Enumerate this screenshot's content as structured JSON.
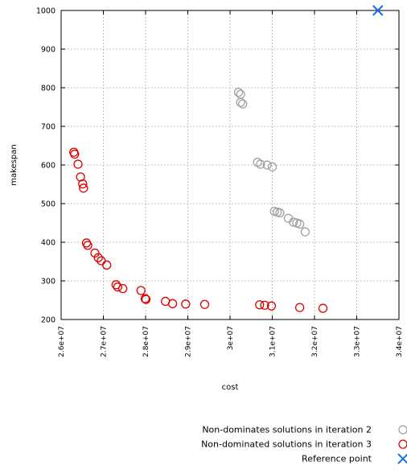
{
  "chart_data": {
    "type": "scatter",
    "title": "",
    "xlabel": "cost",
    "ylabel": "makespan",
    "xlim": [
      26000000,
      34000000
    ],
    "ylim": [
      200,
      1000
    ],
    "grid": true,
    "legend_position": "bottom-right",
    "xticks": [
      {
        "value": 26000000,
        "label": "2.6e+07"
      },
      {
        "value": 27000000,
        "label": "2.7e+07"
      },
      {
        "value": 28000000,
        "label": "2.8e+07"
      },
      {
        "value": 29000000,
        "label": "2.9e+07"
      },
      {
        "value": 30000000,
        "label": "3e+07"
      },
      {
        "value": 31000000,
        "label": "3.1e+07"
      },
      {
        "value": 32000000,
        "label": "3.2e+07"
      },
      {
        "value": 33000000,
        "label": "3.3e+07"
      },
      {
        "value": 34000000,
        "label": "3.4e+07"
      }
    ],
    "yticks": [
      {
        "value": 200,
        "label": "200"
      },
      {
        "value": 300,
        "label": "300"
      },
      {
        "value": 400,
        "label": "400"
      },
      {
        "value": 500,
        "label": "500"
      },
      {
        "value": 600,
        "label": "600"
      },
      {
        "value": 700,
        "label": "700"
      },
      {
        "value": 800,
        "label": "800"
      },
      {
        "value": 900,
        "label": "900"
      },
      {
        "value": 1000,
        "label": "1000"
      }
    ],
    "series": [
      {
        "name": "Non-dominates solutions in iteration 2",
        "color": "#a0a0a0",
        "marker": "circle",
        "points": [
          [
            30200000,
            788
          ],
          [
            30250000,
            783
          ],
          [
            30250000,
            762
          ],
          [
            30300000,
            758
          ],
          [
            30650000,
            607
          ],
          [
            30720000,
            602
          ],
          [
            30880000,
            600
          ],
          [
            31000000,
            595
          ],
          [
            31050000,
            480
          ],
          [
            31120000,
            478
          ],
          [
            31180000,
            476
          ],
          [
            31380000,
            462
          ],
          [
            31500000,
            452
          ],
          [
            31580000,
            450
          ],
          [
            31650000,
            447
          ],
          [
            31780000,
            427
          ]
        ]
      },
      {
        "name": "Non-dominated solutions in iteration 3",
        "color": "#dd0000",
        "marker": "circle",
        "points": [
          [
            26300000,
            633
          ],
          [
            26320000,
            628
          ],
          [
            26400000,
            602
          ],
          [
            26460000,
            569
          ],
          [
            26510000,
            551
          ],
          [
            26530000,
            540
          ],
          [
            26600000,
            398
          ],
          [
            26630000,
            392
          ],
          [
            26800000,
            372
          ],
          [
            26880000,
            360
          ],
          [
            26950000,
            352
          ],
          [
            27080000,
            341
          ],
          [
            27300000,
            290
          ],
          [
            27340000,
            284
          ],
          [
            27460000,
            280
          ],
          [
            27890000,
            275
          ],
          [
            27990000,
            254
          ],
          [
            28010000,
            252
          ],
          [
            28470000,
            247
          ],
          [
            28640000,
            241
          ],
          [
            28950000,
            240
          ],
          [
            29400000,
            239
          ],
          [
            30700000,
            238
          ],
          [
            30820000,
            237
          ],
          [
            30980000,
            235
          ],
          [
            31650000,
            231
          ],
          [
            32200000,
            229
          ]
        ]
      },
      {
        "name": "Reference point",
        "color": "#1a6fdf",
        "marker": "x",
        "points": [
          [
            33500000,
            1000
          ]
        ]
      }
    ]
  }
}
